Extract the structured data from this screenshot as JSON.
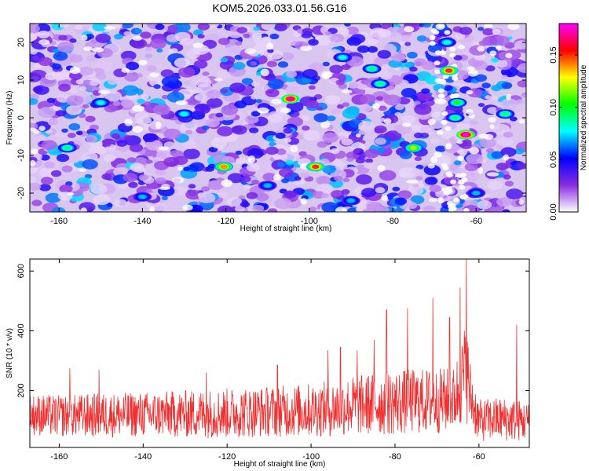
{
  "title": "KOM5.2026.033.01.56.G16",
  "chart_data": [
    {
      "type": "heatmap",
      "xlabel": "Height of straight line (km)",
      "ylabel": "Frequency (Hz)",
      "xlim": [
        -167,
        -48
      ],
      "ylim": [
        -25,
        25
      ],
      "x_ticks": [
        "-160",
        "-140",
        "-120",
        "-100",
        "-80",
        "-60"
      ],
      "y_ticks": [
        "-20",
        "-10",
        "0",
        "10",
        "20"
      ],
      "colorbar": {
        "label": "Normalized spectral amplitude",
        "range": [
          0,
          0.18
        ],
        "ticks": [
          "0.00",
          "0.05",
          "0.10",
          "0.15"
        ],
        "colors": [
          "#ffffff",
          "#8a2be2",
          "#0000ff",
          "#00ffff",
          "#00ff00",
          "#ffff00",
          "#ff0000",
          "#ff00ff"
        ]
      },
      "hotspots": [
        {
          "x": -104.5,
          "y": 5,
          "value": 0.17
        },
        {
          "x": -98.5,
          "y": -13,
          "value": 0.15
        },
        {
          "x": -120.5,
          "y": -13,
          "value": 0.14
        },
        {
          "x": -66.5,
          "y": 12.5,
          "value": 0.15
        },
        {
          "x": -62.5,
          "y": -4.5,
          "value": 0.18
        },
        {
          "x": -64.5,
          "y": 4,
          "value": 0.1
        },
        {
          "x": -65,
          "y": 0,
          "value": 0.09
        },
        {
          "x": -75,
          "y": -8,
          "value": 0.12
        },
        {
          "x": -158,
          "y": -8,
          "value": 0.09
        },
        {
          "x": -150,
          "y": 4,
          "value": 0.08
        },
        {
          "x": -130,
          "y": 1,
          "value": 0.08
        },
        {
          "x": -92,
          "y": 16,
          "value": 0.08
        },
        {
          "x": -85,
          "y": 13,
          "value": 0.09
        },
        {
          "x": -83,
          "y": 9,
          "value": 0.09
        },
        {
          "x": -67,
          "y": 20,
          "value": 0.08
        },
        {
          "x": -53,
          "y": 1,
          "value": 0.09
        },
        {
          "x": -60,
          "y": -20,
          "value": 0.07
        },
        {
          "x": -140,
          "y": -21,
          "value": 0.07
        },
        {
          "x": -110,
          "y": -18,
          "value": 0.07
        },
        {
          "x": -90,
          "y": -22,
          "value": 0.07
        }
      ]
    },
    {
      "type": "line",
      "xlabel": "Height of straight line (km)",
      "ylabel": "SNR (10 * v/v)",
      "xlim": [
        -167,
        -48
      ],
      "ylim": [
        10,
        640
      ],
      "x_ticks": [
        "-160",
        "-140",
        "-120",
        "-100",
        "-80",
        "-60"
      ],
      "y_ticks": [
        "200",
        "400",
        "600"
      ],
      "series": [
        {
          "color": "#f03030",
          "envelope_x": [
            -167,
            -160,
            -150,
            -140,
            -130,
            -120,
            -110,
            -100,
            -95,
            -90,
            -85,
            -80,
            -75,
            -70,
            -66,
            -64,
            -63,
            -62,
            -60,
            -55,
            -50,
            -48
          ],
          "envelope_mid": [
            120,
            115,
            118,
            120,
            122,
            125,
            130,
            135,
            140,
            150,
            155,
            160,
            165,
            165,
            170,
            230,
            270,
            180,
            100,
            105,
            100,
            95
          ],
          "envelope_spread": [
            70,
            70,
            75,
            75,
            80,
            85,
            85,
            90,
            95,
            100,
            105,
            110,
            110,
            110,
            110,
            150,
            180,
            110,
            70,
            75,
            70,
            65
          ],
          "peaks": [
            {
              "x": -157.5,
              "y": 275
            },
            {
              "x": -150.5,
              "y": 270
            },
            {
              "x": -125,
              "y": 260
            },
            {
              "x": -108,
              "y": 285
            },
            {
              "x": -96,
              "y": 335
            },
            {
              "x": -93,
              "y": 345
            },
            {
              "x": -89,
              "y": 335
            },
            {
              "x": -85,
              "y": 370
            },
            {
              "x": -82,
              "y": 470
            },
            {
              "x": -77,
              "y": 475
            },
            {
              "x": -71,
              "y": 510
            },
            {
              "x": -67,
              "y": 445
            },
            {
              "x": -64.5,
              "y": 545
            },
            {
              "x": -63,
              "y": 640
            },
            {
              "x": -51,
              "y": 420
            }
          ]
        }
      ]
    }
  ]
}
